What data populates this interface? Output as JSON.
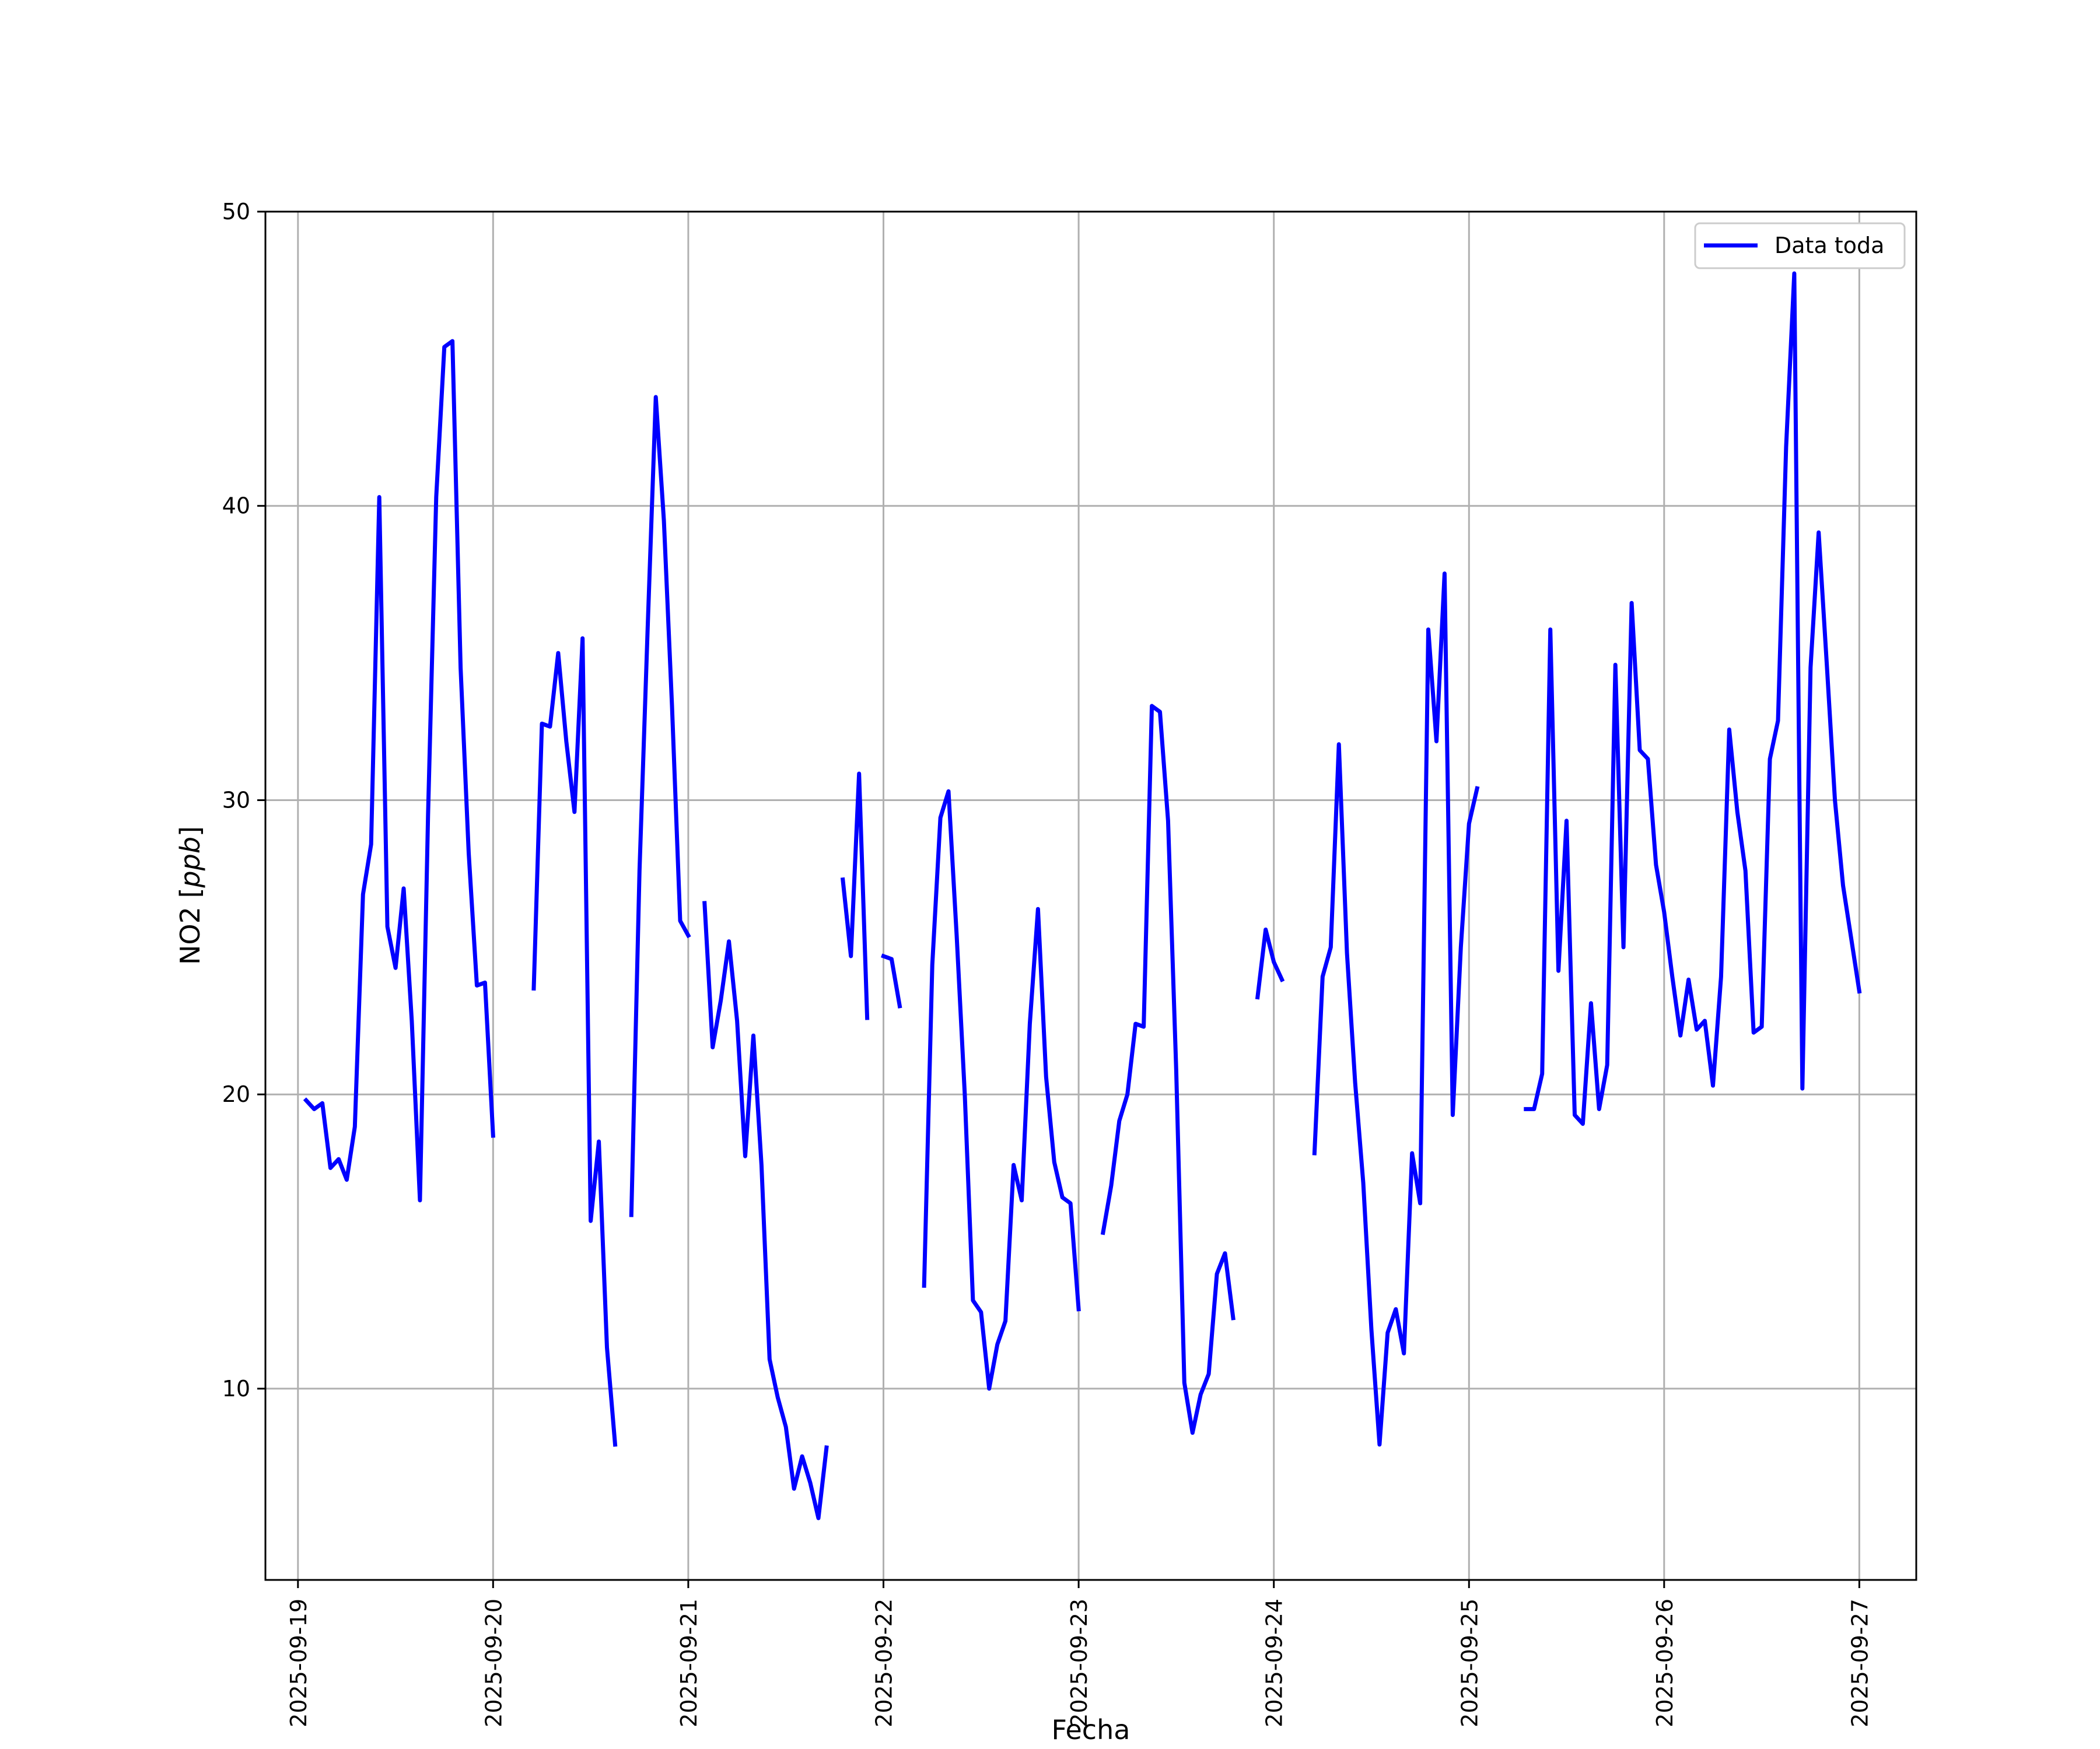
{
  "chart_data": {
    "type": "line",
    "xlabel": "Fecha",
    "ylabel": "NO2 [ppb]",
    "ylabel_parts": {
      "base": "NO2 [",
      "unit": "ppb",
      "close": "]"
    },
    "ylim": [
      3.5,
      50
    ],
    "xlim": [
      "2025-09-18T20:00",
      "2025-09-27T07:00"
    ],
    "yticks": [
      10,
      20,
      30,
      40,
      50
    ],
    "xticks": [
      "2025-09-19",
      "2025-09-20",
      "2025-09-21",
      "2025-09-22",
      "2025-09-23",
      "2025-09-24",
      "2025-09-25",
      "2025-09-26",
      "2025-09-27"
    ],
    "grid": true,
    "legend": {
      "position": "top-right",
      "entries": [
        "Data toda"
      ]
    },
    "colors": {
      "line": "#0000ff",
      "grid": "#b0b0b0",
      "axes": "#000000"
    },
    "series": [
      {
        "name": "Data toda",
        "segments": [
          [
            [
              "2025-09-19T01:00",
              19.8
            ],
            [
              "2025-09-19T02:00",
              19.5
            ],
            [
              "2025-09-19T03:00",
              19.7
            ],
            [
              "2025-09-19T04:00",
              17.5
            ],
            [
              "2025-09-19T05:00",
              17.8
            ],
            [
              "2025-09-19T06:00",
              17.1
            ],
            [
              "2025-09-19T07:00",
              18.9
            ],
            [
              "2025-09-19T08:00",
              26.8
            ],
            [
              "2025-09-19T09:00",
              28.5
            ],
            [
              "2025-09-19T10:00",
              40.3
            ],
            [
              "2025-09-19T11:00",
              25.7
            ],
            [
              "2025-09-19T12:00",
              24.3
            ],
            [
              "2025-09-19T13:00",
              27.0
            ],
            [
              "2025-09-19T14:00",
              22.5
            ],
            [
              "2025-09-19T15:00",
              16.4
            ],
            [
              "2025-09-19T16:00",
              29.5
            ],
            [
              "2025-09-19T17:00",
              40.3
            ],
            [
              "2025-09-19T18:00",
              45.4
            ],
            [
              "2025-09-19T19:00",
              45.6
            ],
            [
              "2025-09-19T20:00",
              34.5
            ],
            [
              "2025-09-19T21:00",
              28.2
            ],
            [
              "2025-09-19T22:00",
              23.7
            ],
            [
              "2025-09-19T23:00",
              23.8
            ],
            [
              "2025-09-20T00:00",
              18.6
            ]
          ],
          [
            [
              "2025-09-20T05:00",
              23.6
            ],
            [
              "2025-09-20T06:00",
              32.6
            ],
            [
              "2025-09-20T07:00",
              32.5
            ],
            [
              "2025-09-20T08:00",
              35.0
            ],
            [
              "2025-09-20T09:00",
              32.0
            ],
            [
              "2025-09-20T10:00",
              29.6
            ],
            [
              "2025-09-20T11:00",
              35.5
            ],
            [
              "2025-09-20T12:00",
              15.7
            ],
            [
              "2025-09-20T13:00",
              18.4
            ],
            [
              "2025-09-20T14:00",
              11.4
            ],
            [
              "2025-09-20T15:00",
              8.1
            ]
          ],
          [
            [
              "2025-09-20T17:00",
              15.9
            ],
            [
              "2025-09-20T18:00",
              27.6
            ],
            [
              "2025-09-20T19:00",
              35.8
            ],
            [
              "2025-09-20T20:00",
              43.7
            ],
            [
              "2025-09-20T21:00",
              39.5
            ],
            [
              "2025-09-20T22:00",
              33.2
            ],
            [
              "2025-09-20T23:00",
              25.9
            ],
            [
              "2025-09-21T00:00",
              25.4
            ]
          ],
          [
            [
              "2025-09-21T02:00",
              26.5
            ],
            [
              "2025-09-21T03:00",
              21.6
            ],
            [
              "2025-09-21T04:00",
              23.2
            ],
            [
              "2025-09-21T05:00",
              25.2
            ],
            [
              "2025-09-21T06:00",
              22.5
            ],
            [
              "2025-09-21T07:00",
              17.9
            ],
            [
              "2025-09-21T08:00",
              22.0
            ],
            [
              "2025-09-21T09:00",
              17.6
            ],
            [
              "2025-09-21T10:00",
              11.0
            ],
            [
              "2025-09-21T11:00",
              9.7
            ],
            [
              "2025-09-21T12:00",
              8.7
            ],
            [
              "2025-09-21T13:00",
              6.6
            ],
            [
              "2025-09-21T14:00",
              7.7
            ],
            [
              "2025-09-21T15:00",
              6.8
            ],
            [
              "2025-09-21T16:00",
              5.6
            ],
            [
              "2025-09-21T17:00",
              8.0
            ]
          ],
          [
            [
              "2025-09-21T19:00",
              27.3
            ],
            [
              "2025-09-21T20:00",
              24.7
            ],
            [
              "2025-09-21T21:00",
              30.9
            ],
            [
              "2025-09-21T22:00",
              22.6
            ]
          ],
          [
            [
              "2025-09-22T00:00",
              24.7
            ],
            [
              "2025-09-22T01:00",
              24.6
            ],
            [
              "2025-09-22T02:00",
              23.0
            ]
          ],
          [
            [
              "2025-09-22T05:00",
              13.5
            ],
            [
              "2025-09-22T06:00",
              24.4
            ],
            [
              "2025-09-22T07:00",
              29.4
            ],
            [
              "2025-09-22T08:00",
              30.3
            ],
            [
              "2025-09-22T09:00",
              25.4
            ],
            [
              "2025-09-22T10:00",
              20.0
            ],
            [
              "2025-09-22T11:00",
              13.0
            ],
            [
              "2025-09-22T12:00",
              12.6
            ],
            [
              "2025-09-22T13:00",
              10.0
            ],
            [
              "2025-09-22T14:00",
              11.5
            ],
            [
              "2025-09-22T15:00",
              12.3
            ],
            [
              "2025-09-22T16:00",
              17.6
            ],
            [
              "2025-09-22T17:00",
              16.4
            ],
            [
              "2025-09-22T18:00",
              22.4
            ],
            [
              "2025-09-22T19:00",
              26.3
            ],
            [
              "2025-09-22T20:00",
              20.6
            ],
            [
              "2025-09-22T21:00",
              17.7
            ],
            [
              "2025-09-22T22:00",
              16.5
            ],
            [
              "2025-09-22T23:00",
              16.3
            ],
            [
              "2025-09-23T00:00",
              12.7
            ]
          ],
          [
            [
              "2025-09-23T03:00",
              15.3
            ],
            [
              "2025-09-23T04:00",
              16.9
            ],
            [
              "2025-09-23T05:00",
              19.1
            ],
            [
              "2025-09-23T06:00",
              20.0
            ],
            [
              "2025-09-23T07:00",
              22.4
            ],
            [
              "2025-09-23T08:00",
              22.3
            ],
            [
              "2025-09-23T09:00",
              33.2
            ],
            [
              "2025-09-23T10:00",
              33.0
            ],
            [
              "2025-09-23T11:00",
              29.3
            ],
            [
              "2025-09-23T12:00",
              20.8
            ],
            [
              "2025-09-23T13:00",
              10.2
            ],
            [
              "2025-09-23T14:00",
              8.5
            ],
            [
              "2025-09-23T15:00",
              9.8
            ],
            [
              "2025-09-23T16:00",
              10.5
            ],
            [
              "2025-09-23T17:00",
              13.9
            ],
            [
              "2025-09-23T18:00",
              14.6
            ],
            [
              "2025-09-23T19:00",
              12.4
            ]
          ],
          [
            [
              "2025-09-23T22:00",
              23.3
            ],
            [
              "2025-09-23T23:00",
              25.6
            ],
            [
              "2025-09-24T00:00",
              24.5
            ],
            [
              "2025-09-24T01:00",
              23.9
            ]
          ],
          [
            [
              "2025-09-24T05:00",
              18.0
            ],
            [
              "2025-09-24T06:00",
              24.0
            ],
            [
              "2025-09-24T07:00",
              25.0
            ],
            [
              "2025-09-24T08:00",
              31.9
            ],
            [
              "2025-09-24T09:00",
              24.8
            ],
            [
              "2025-09-24T10:00",
              20.4
            ],
            [
              "2025-09-24T11:00",
              17.0
            ],
            [
              "2025-09-24T12:00",
              12.0
            ],
            [
              "2025-09-24T13:00",
              8.1
            ],
            [
              "2025-09-24T14:00",
              11.9
            ],
            [
              "2025-09-24T15:00",
              12.7
            ],
            [
              "2025-09-24T16:00",
              11.2
            ],
            [
              "2025-09-24T17:00",
              18.0
            ],
            [
              "2025-09-24T18:00",
              16.3
            ],
            [
              "2025-09-24T19:00",
              35.8
            ],
            [
              "2025-09-24T20:00",
              32.0
            ],
            [
              "2025-09-24T21:00",
              37.7
            ],
            [
              "2025-09-24T22:00",
              19.3
            ],
            [
              "2025-09-24T23:00",
              25.0
            ],
            [
              "2025-09-25T00:00",
              29.2
            ],
            [
              "2025-09-25T01:00",
              30.4
            ]
          ],
          [
            [
              "2025-09-25T07:00",
              19.5
            ],
            [
              "2025-09-25T08:00",
              19.5
            ],
            [
              "2025-09-25T09:00",
              20.7
            ],
            [
              "2025-09-25T10:00",
              35.8
            ],
            [
              "2025-09-25T11:00",
              24.2
            ],
            [
              "2025-09-25T12:00",
              29.3
            ],
            [
              "2025-09-25T13:00",
              19.3
            ],
            [
              "2025-09-25T14:00",
              19.0
            ],
            [
              "2025-09-25T15:00",
              23.1
            ],
            [
              "2025-09-25T16:00",
              19.5
            ],
            [
              "2025-09-25T17:00",
              21.0
            ],
            [
              "2025-09-25T18:00",
              34.6
            ],
            [
              "2025-09-25T19:00",
              25.0
            ],
            [
              "2025-09-25T20:00",
              36.7
            ],
            [
              "2025-09-25T21:00",
              31.7
            ],
            [
              "2025-09-25T22:00",
              31.4
            ],
            [
              "2025-09-25T23:00",
              27.8
            ],
            [
              "2025-09-26T00:00",
              26.2
            ],
            [
              "2025-09-26T01:00",
              24.0
            ],
            [
              "2025-09-26T02:00",
              22.0
            ],
            [
              "2025-09-26T03:00",
              23.9
            ],
            [
              "2025-09-26T04:00",
              22.2
            ],
            [
              "2025-09-26T05:00",
              22.5
            ],
            [
              "2025-09-26T06:00",
              20.3
            ],
            [
              "2025-09-26T07:00",
              24.0
            ],
            [
              "2025-09-26T08:00",
              32.4
            ],
            [
              "2025-09-26T09:00",
              29.6
            ],
            [
              "2025-09-26T10:00",
              27.6
            ],
            [
              "2025-09-26T11:00",
              22.1
            ],
            [
              "2025-09-26T12:00",
              22.3
            ],
            [
              "2025-09-26T13:00",
              31.4
            ],
            [
              "2025-09-26T14:00",
              32.7
            ],
            [
              "2025-09-26T15:00",
              42.0
            ],
            [
              "2025-09-26T16:00",
              47.9
            ],
            [
              "2025-09-26T17:00",
              20.2
            ],
            [
              "2025-09-26T18:00",
              34.5
            ],
            [
              "2025-09-26T19:00",
              39.1
            ],
            [
              "2025-09-26T20:00",
              34.6
            ],
            [
              "2025-09-26T21:00",
              30.0
            ],
            [
              "2025-09-26T22:00",
              27.1
            ],
            [
              "2025-09-26T23:00",
              25.3
            ],
            [
              "2025-09-27T00:00",
              23.5
            ]
          ]
        ]
      }
    ]
  }
}
